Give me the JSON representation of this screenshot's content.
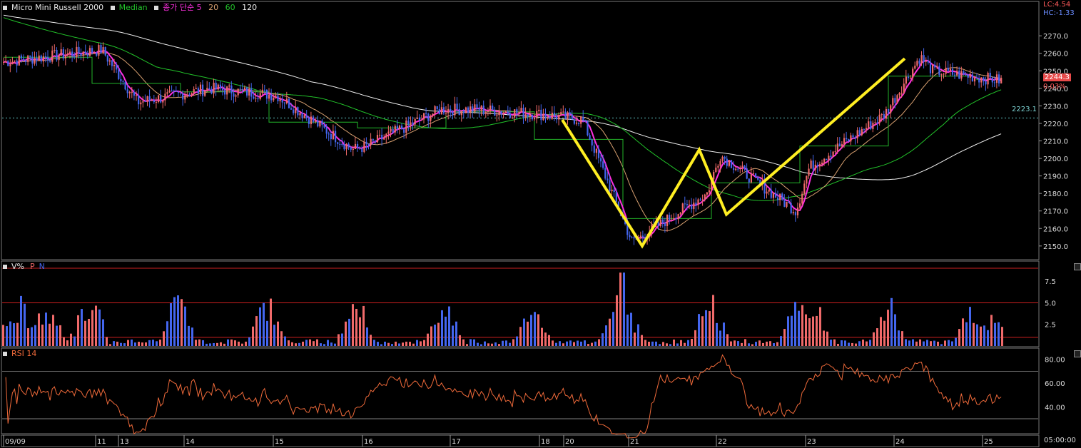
{
  "legend": {
    "symbol": "Micro Mini Russell 2000",
    "median": "Median",
    "ma_label": "종가 단순 5",
    "ma20": "20",
    "ma60": "60",
    "ma120": "120"
  },
  "header_right": {
    "lc": "LC:4.54",
    "hc": "HC:-1.33"
  },
  "current_price": "2244.3",
  "change_pct": "0.03%",
  "reference_price": "2223.1",
  "volume_panel": {
    "title": "V%",
    "p": "P",
    "n": "N"
  },
  "rsi_panel": {
    "title": "RSI 14"
  },
  "time_label": "05:00:00",
  "colors": {
    "up": "#f06a6a",
    "down": "#4466ee",
    "ma5": "#ff2fe0",
    "ma20": "#d8a070",
    "ma60": "#22c22a",
    "ma120": "#f0f0f0",
    "median": "#22b52a",
    "annotation": "#ffee22",
    "rsi": "#f06a3a",
    "grid_red": "#cc2020"
  },
  "chart_data": [
    {
      "type": "candlestick",
      "title": "Micro Mini Russell 2000",
      "y_ticks": [
        "2270.0",
        "2260.0",
        "2250.0",
        "2240.0",
        "2230.0",
        "2220.0",
        "2210.0",
        "2200.0",
        "2190.0",
        "2180.0",
        "2170.0",
        "2160.0",
        "2150.0"
      ],
      "ylim": [
        2143,
        2288
      ],
      "x_labels": [
        "09/09",
        "11",
        "13",
        "14",
        "15",
        "16",
        "17",
        "18",
        "20",
        "21",
        "22",
        "23",
        "24",
        "25"
      ],
      "price_path": [
        {
          "day": "09/09",
          "price": 2255
        },
        {
          "day": "11",
          "price": 2262
        },
        {
          "day": "13",
          "price": 2232
        },
        {
          "day": "14",
          "price": 2240
        },
        {
          "day": "15",
          "price": 2236
        },
        {
          "day": "15",
          "price": 2205
        },
        {
          "day": "16",
          "price": 2207
        },
        {
          "day": "16",
          "price": 2228
        },
        {
          "day": "17",
          "price": 2228
        },
        {
          "day": "18",
          "price": 2225
        },
        {
          "day": "20",
          "price": 2222
        },
        {
          "day": "21",
          "price": 2152
        },
        {
          "day": "21",
          "price": 2180
        },
        {
          "day": "22",
          "price": 2202
        },
        {
          "day": "22",
          "price": 2170
        },
        {
          "day": "23",
          "price": 2195
        },
        {
          "day": "23",
          "price": 2225
        },
        {
          "day": "24",
          "price": 2258
        },
        {
          "day": "25",
          "price": 2250
        },
        {
          "day": "25",
          "price": 2244.3
        }
      ],
      "annotation": {
        "type": "W pattern",
        "points": [
          2222,
          2150,
          2205,
          2168,
          2257
        ]
      }
    },
    {
      "type": "bar",
      "title": "V%",
      "y_ticks": [
        "7.5",
        "5.0",
        "2.5"
      ],
      "ylim": [
        0,
        9.5
      ],
      "reference_lines": [
        9.0,
        5.0,
        1.0
      ]
    },
    {
      "type": "line",
      "title": "RSI 14",
      "y_ticks": [
        "80.00",
        "60.00",
        "40.00"
      ],
      "ylim": [
        18,
        87
      ],
      "reference_lines": [
        70,
        30
      ]
    }
  ]
}
